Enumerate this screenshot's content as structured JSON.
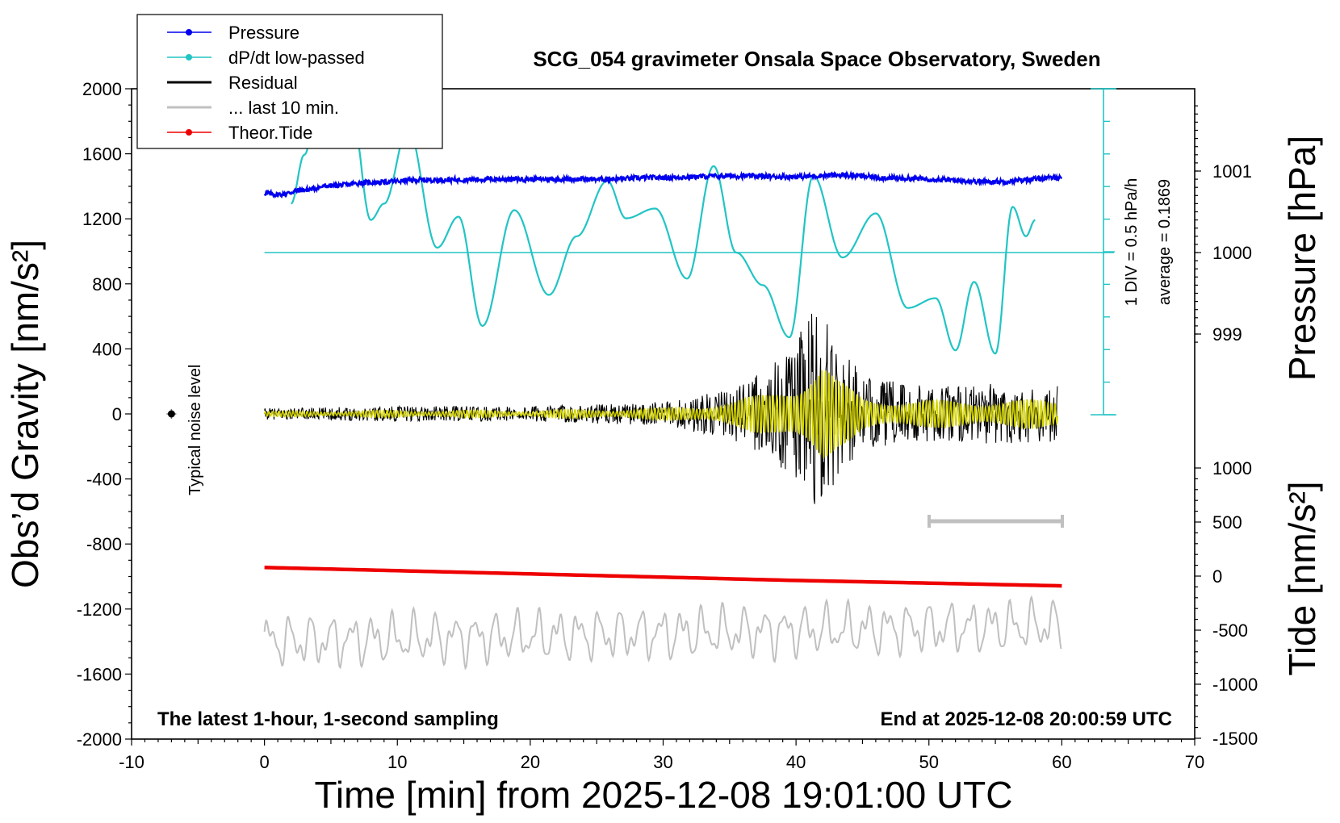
{
  "chart_data": {
    "type": "line",
    "title": "SCG_054 gravimeter Onsala Space Observatory, Sweden",
    "xlabel": "Time [min] from 2025-12-08 19:01:00 UTC",
    "ylabel_left": "Obs’d Gravity [nm/s²]",
    "ylabel_right_top": "Pressure [hPa]",
    "ylabel_right_bottom": "Tide [nm/s²]",
    "xlim": [
      -10,
      70
    ],
    "ylim": [
      -2000,
      2000
    ],
    "x_ticks": [
      "-10",
      "0",
      "10",
      "20",
      "30",
      "40",
      "50",
      "60",
      "70"
    ],
    "y_ticks": [
      "2000",
      "1600",
      "1200",
      "800",
      "400",
      "0",
      "-400",
      "-800",
      "-1200",
      "-1600",
      "-2000"
    ],
    "pressure_ticks": [
      "1001",
      "1000",
      "999"
    ],
    "pressure_ticks_values": [
      1001,
      1000,
      999
    ],
    "tide_ticks": [
      "1000",
      "500",
      "0",
      "-500",
      "-1000",
      "-1500"
    ],
    "tide_ticks_values": [
      1000,
      500,
      0,
      -500,
      -1000,
      -1500
    ],
    "legend": {
      "placement": "top-left",
      "entries": [
        {
          "name": "Pressure",
          "color": "#0000ee",
          "marker": true
        },
        {
          "name": "dP/dt low-passed",
          "color": "#22c4c4",
          "marker": true
        },
        {
          "name": "Residual",
          "color": "#000000",
          "marker": false
        },
        {
          "name": "... last 10 min.",
          "color": "#c0c0c0",
          "marker": false
        },
        {
          "name": "Theor.Tide",
          "color": "#ee0000",
          "marker": true
        }
      ]
    },
    "annotations": {
      "left_bottom": "The latest 1-hour, 1-second sampling",
      "right_bottom": "End at 2025-12-08 20:00:59 UTC",
      "noise": "Typical noise level",
      "div": "1 DIV = 0.5 hPa/h",
      "average": "average = 0.1869"
    },
    "series": [
      {
        "name": "Pressure",
        "unit": "hPa",
        "x": [
          0,
          1,
          3,
          5,
          8,
          12,
          18,
          25,
          30,
          35,
          40,
          43,
          48,
          55,
          60
        ],
        "values": [
          1000.73,
          1000.71,
          1000.77,
          1000.82,
          1000.86,
          1000.89,
          1000.9,
          1000.9,
          1000.92,
          1000.94,
          1000.93,
          1000.95,
          1000.91,
          1000.87,
          1000.92
        ]
      },
      {
        "name": "dP/dt low-passed",
        "unit": "hPa/h",
        "x": [
          2,
          3,
          4.2,
          5.5,
          6.6,
          8,
          9,
          10.8,
          13,
          14.6,
          16.4,
          18.8,
          21.4,
          23.5,
          25.8,
          27.2,
          29.4,
          31.8,
          33.8,
          35.5,
          37.5,
          39.5,
          41.3,
          43.5,
          46,
          48.4,
          50.5,
          52,
          53.4,
          55,
          56.3,
          57.3,
          58
        ],
        "values": [
          0.3,
          0.6,
          1.0,
          0.78,
          0.84,
          0.2,
          0.3,
          0.76,
          0.03,
          0.22,
          -0.45,
          0.26,
          -0.26,
          0.1,
          0.44,
          0.21,
          0.27,
          -0.16,
          0.53,
          0.0,
          -0.2,
          -0.52,
          0.47,
          -0.03,
          0.24,
          -0.34,
          -0.28,
          -0.6,
          -0.18,
          -0.62,
          0.28,
          0.1,
          0.2
        ]
      },
      {
        "name": "Residual",
        "unit": "nm/s²",
        "x": [
          0,
          10,
          20,
          30,
          35,
          38,
          40,
          42,
          43,
          45,
          50,
          55,
          60
        ],
        "values": [
          0,
          20,
          10,
          10,
          -30,
          60,
          250,
          500,
          400,
          60,
          20,
          0,
          0
        ],
        "amplitude": [
          40,
          55,
          55,
          85,
          180,
          320,
          530,
          850,
          520,
          260,
          200,
          220,
          200
        ]
      },
      {
        "name": "... last 10 min.",
        "unit": "nm/s²",
        "x": [
          0,
          60
        ],
        "values": [
          -1400,
          -1300
        ],
        "amplitude": [
          170,
          170
        ]
      },
      {
        "name": "Theor.Tide",
        "unit": "nm/s²",
        "x": [
          0,
          20,
          40,
          60
        ],
        "values": [
          80,
          20,
          -40,
          -90
        ]
      }
    ],
    "noise_level": {
      "x": -7,
      "y": 0,
      "error": 30
    }
  }
}
